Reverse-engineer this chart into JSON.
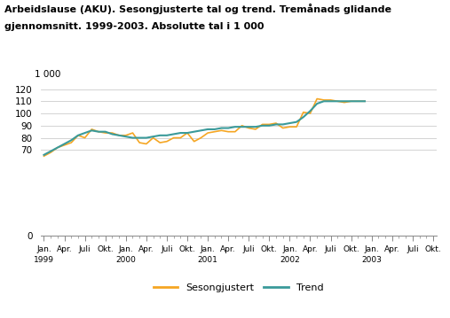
{
  "title_line1": "Arbeidslause (AKU). Sesongjusterte tal og trend. Tremånads glidande",
  "title_line2": "gjennomsnitt. 1999-2003. Absolutte tal i 1 000",
  "ylabel_top": "1 000",
  "ylim": [
    0,
    120
  ],
  "yticks": [
    0,
    70,
    80,
    90,
    100,
    110,
    120
  ],
  "ytick_labels": [
    "0",
    "70",
    "80",
    "90",
    "100",
    "110",
    "120"
  ],
  "x_positions": [
    0,
    3,
    6,
    9,
    12,
    15,
    18,
    21,
    24,
    27,
    30,
    33,
    36,
    39,
    42,
    45,
    48,
    51,
    54,
    57
  ],
  "quarter_labels": [
    "Jan.",
    "Apr.",
    "Juli",
    "Okt.",
    "Jan.",
    "Apr.",
    "Juli",
    "Okt.",
    "Jan.",
    "Apr.",
    "Juli",
    "Okt.",
    "Jan.",
    "Apr.",
    "Juli",
    "Okt.",
    "Jan.",
    "Apr.",
    "Juli",
    "Okt."
  ],
  "year_row": [
    "1999",
    "",
    "",
    "",
    "2000",
    "",
    "",
    "",
    "2001",
    "",
    "",
    "",
    "2002",
    "",
    "",
    "",
    "2003",
    "",
    "",
    ""
  ],
  "sesongjustert_color": "#f5a623",
  "trend_color": "#3a9a9a",
  "background_color": "#ffffff",
  "grid_color": "#cccccc",
  "legend_labels": [
    "Sesongjustert",
    "Trend"
  ],
  "sesongjustert": [
    65,
    68,
    72,
    74,
    76,
    82,
    80,
    87,
    85,
    84,
    84,
    82,
    82,
    84,
    76,
    75,
    80,
    76,
    77,
    80,
    80,
    84,
    77,
    80,
    84,
    85,
    86,
    85,
    85,
    90,
    88,
    87,
    91,
    91,
    92,
    88,
    89,
    89,
    101,
    100,
    112,
    111,
    111,
    110,
    109,
    110,
    110,
    110
  ],
  "trend": [
    66,
    69,
    72,
    75,
    78,
    82,
    84,
    86,
    85,
    85,
    83,
    82,
    81,
    80,
    80,
    80,
    81,
    82,
    82,
    83,
    84,
    84,
    85,
    86,
    87,
    87,
    88,
    88,
    89,
    89,
    89,
    89,
    90,
    90,
    91,
    91,
    92,
    93,
    97,
    102,
    108,
    110,
    110,
    110,
    110,
    110,
    110,
    110
  ]
}
